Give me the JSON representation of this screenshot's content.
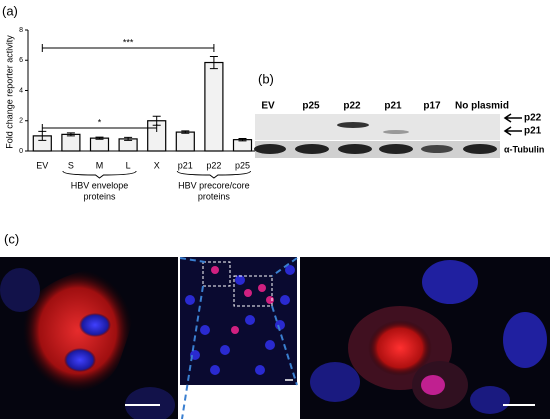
{
  "panels": [
    "(a)",
    "(b)",
    "(c)"
  ],
  "chart_data": {
    "type": "bar",
    "ylabel": "Fold change reporter activity",
    "categories": [
      "EV",
      "S",
      "M",
      "L",
      "X",
      "p21",
      "p22",
      "p25"
    ],
    "values": [
      1.0,
      1.1,
      0.85,
      0.8,
      2.0,
      1.25,
      5.85,
      0.75
    ],
    "errors": [
      0.3,
      0.1,
      0.07,
      0.1,
      0.3,
      0.08,
      0.4,
      0.08
    ],
    "color": "#f2f2f2",
    "ylim": [
      0,
      8
    ],
    "yticks": [
      0,
      2,
      4,
      6,
      8
    ],
    "groups": [
      {
        "from": 1,
        "to": 3,
        "lines": [
          "HBV envelope",
          "proteins"
        ]
      },
      {
        "from": 5,
        "to": 7,
        "lines": [
          "HBV precore/core",
          "proteins"
        ]
      }
    ],
    "significance": [
      {
        "from": 0,
        "to": 6,
        "label": "***"
      },
      {
        "from": 0,
        "to": 4,
        "label": "*"
      }
    ]
  },
  "blot": {
    "lanes": [
      "EV",
      "p25",
      "p22",
      "p21",
      "p17",
      "No plasmid"
    ],
    "bands": [
      "p22",
      "p21"
    ],
    "loading": "α-Tubulin"
  }
}
